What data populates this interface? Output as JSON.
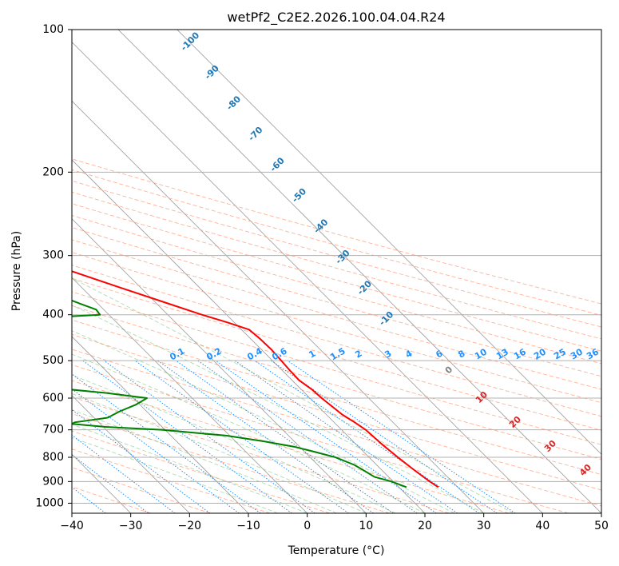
{
  "chart_data": {
    "type": "line",
    "subtype": "skew-t log-p diagram",
    "title": "wetPf2_C2E2.2026.100.04.04.R24",
    "xlabel": "Temperature (°C)",
    "ylabel": "Pressure (hPa)",
    "xlim": [
      -40,
      50
    ],
    "ylim": [
      1050,
      100
    ],
    "x_ticks": [
      -40,
      -30,
      -20,
      -10,
      0,
      10,
      20,
      30,
      40,
      50
    ],
    "y_ticks": [
      100,
      200,
      300,
      400,
      500,
      600,
      700,
      800,
      900,
      1000
    ],
    "grid": true,
    "isotherms_step_c": 10,
    "series": [
      {
        "name": "Temperature",
        "color": "#ff0000",
        "points": [
          [
            925,
            26.7
          ],
          [
            900,
            26.2
          ],
          [
            850,
            25.5
          ],
          [
            800,
            24.9
          ],
          [
            750,
            24.4
          ],
          [
            700,
            24.1
          ],
          [
            675,
            23.5
          ],
          [
            650,
            22.7
          ],
          [
            600,
            22.0
          ],
          [
            575,
            21.8
          ],
          [
            550,
            21.2
          ],
          [
            525,
            21.3
          ],
          [
            500,
            21.5
          ],
          [
            475,
            21.7
          ],
          [
            450,
            21.6
          ],
          [
            430,
            21.3
          ],
          [
            415,
            18.8
          ],
          [
            400,
            15.8
          ],
          [
            380,
            12.2
          ],
          [
            350,
            6.4
          ],
          [
            320,
            0.3
          ],
          [
            300,
            -4.4
          ],
          [
            275,
            -10.8
          ],
          [
            250,
            -17.9
          ],
          [
            225,
            -26.0
          ],
          [
            200,
            -34.9
          ],
          [
            175,
            -45.3
          ],
          [
            150,
            -57.3
          ],
          [
            140,
            -62.7
          ],
          [
            130,
            -67.9
          ],
          [
            120,
            -72.9
          ],
          [
            110,
            -78.4
          ],
          [
            100,
            -84.7
          ]
        ]
      },
      {
        "name": "Dewpoint",
        "color": "#008000",
        "points": [
          [
            925,
            21.3
          ],
          [
            900,
            19.7
          ],
          [
            880,
            17.6
          ],
          [
            850,
            16.8
          ],
          [
            830,
            16.2
          ],
          [
            800,
            14.3
          ],
          [
            780,
            11.8
          ],
          [
            760,
            9.1
          ],
          [
            740,
            4.8
          ],
          [
            720,
            -0.6
          ],
          [
            700,
            -10.6
          ],
          [
            690,
            -19.6
          ],
          [
            680,
            -24.8
          ],
          [
            675,
            -24.1
          ],
          [
            660,
            -17.7
          ],
          [
            640,
            -14.6
          ],
          [
            620,
            -10.8
          ],
          [
            600,
            -7.7
          ],
          [
            585,
            -13.8
          ],
          [
            565,
            -25.3
          ],
          [
            540,
            -30.8
          ],
          [
            520,
            -27.0
          ],
          [
            500,
            -33.4
          ],
          [
            480,
            -39.6
          ],
          [
            460,
            -51.1
          ],
          [
            450,
            -60.4
          ],
          [
            445,
            -72.5
          ],
          [
            440,
            -69.6
          ],
          [
            435,
            -60.9
          ],
          [
            420,
            -50.7
          ],
          [
            410,
            -17.9
          ],
          [
            400,
            -1.5
          ],
          [
            390,
            -1.3
          ],
          [
            380,
            -2.9
          ],
          [
            370,
            -4.4
          ],
          [
            350,
            -8.8
          ],
          [
            330,
            -15.5
          ],
          [
            310,
            -20.3
          ],
          [
            300,
            -21.3
          ],
          [
            280,
            -25.6
          ],
          [
            260,
            -31.9
          ],
          [
            250,
            -34.1
          ],
          [
            230,
            -38.4
          ],
          [
            210,
            -43.3
          ],
          [
            200,
            -46.2
          ],
          [
            180,
            -52.3
          ],
          [
            160,
            -59.9
          ],
          [
            150,
            -63.9
          ],
          [
            140,
            -67.3
          ],
          [
            130,
            -69.3
          ],
          [
            125,
            -70.0
          ],
          [
            120,
            -74.1
          ],
          [
            115,
            -79.4
          ],
          [
            110,
            -85.1
          ],
          [
            105,
            -90.3
          ],
          [
            100,
            -94.1
          ]
        ]
      }
    ],
    "dry_adiabats": {
      "color": "#ff9d7c",
      "style": "dashed",
      "thetas_c": [
        -30,
        -20,
        -10,
        0,
        10,
        20,
        30,
        40,
        50,
        60,
        70,
        80,
        90,
        100,
        110,
        120,
        130,
        140,
        150,
        160,
        170,
        180,
        190,
        200
      ]
    },
    "moist_adiabats": {
      "color": "#4caf50",
      "style": "dashed",
      "start_c": [
        -5,
        0,
        5,
        10,
        15,
        20,
        25,
        30,
        35
      ]
    },
    "mixing_ratio_lines": {
      "color": "#1e90ff",
      "style": "dotted",
      "values": [
        "0.1",
        "0.2",
        "0.4",
        "0.6",
        "1",
        "1.5",
        "2",
        "3",
        "4",
        "6",
        "8",
        "10",
        "13",
        "16",
        "20",
        "25",
        "30",
        "36"
      ]
    },
    "annotations": {
      "blue_isotherm_labels": [
        "-100",
        "-90",
        "-80",
        "-70",
        "-60",
        "-50",
        "-40",
        "-30",
        "-20",
        "-10"
      ],
      "red_isotherm_labels": [
        "10",
        "20",
        "30",
        "40"
      ],
      "gray_label": "0"
    },
    "colors": {
      "blue_label": "#1f77b4",
      "mixing_label": "#1e90ff",
      "red_label": "#d62728",
      "gray_label": "#808080",
      "isobar_grid": "#b0b0b0",
      "isotherm_grid": "#9a9a9a"
    }
  }
}
